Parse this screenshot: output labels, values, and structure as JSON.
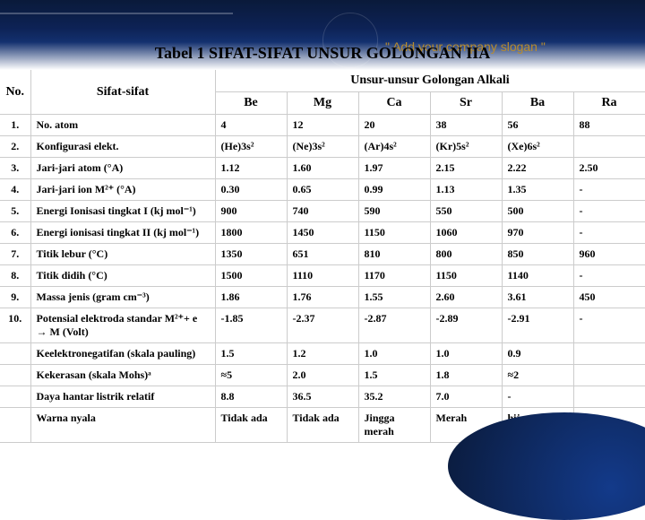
{
  "header": {
    "title": "Tabel 1 SIFAT-SIFAT UNSUR GOLONGAN IIA",
    "slogan": "\" Add your company slogan \""
  },
  "table": {
    "col_no": "No.",
    "col_sifat": "Sifat-sifat",
    "col_group": "Unsur-unsur Golongan Alkali",
    "elements": [
      "Be",
      "Mg",
      "Ca",
      "Sr",
      "Ba",
      "Ra"
    ],
    "rows": [
      {
        "no": "1.",
        "sifat": "No. atom",
        "vals": [
          "4",
          "12",
          "20",
          "38",
          "56",
          "88"
        ]
      },
      {
        "no": "2.",
        "sifat": "Konfigurasi elekt.",
        "vals": [
          "(He)3s²",
          "(Ne)3s²",
          "(Ar)4s²",
          "(Kr)5s²",
          "(Xe)6s²",
          ""
        ]
      },
      {
        "no": "3.",
        "sifat": "Jari-jari atom (°A)",
        "vals": [
          "1.12",
          "1.60",
          "1.97",
          "2.15",
          "2.22",
          "2.50"
        ]
      },
      {
        "no": "4.",
        "sifat": "Jari-jari ion M²⁺ (°A)",
        "vals": [
          "0.30",
          "0.65",
          "0.99",
          "1.13",
          "1.35",
          "-"
        ]
      },
      {
        "no": "5.",
        "sifat": "Energi Ionisasi tingkat I (kj mol⁻¹)",
        "vals": [
          "900",
          "740",
          "590",
          "550",
          "500",
          "-"
        ]
      },
      {
        "no": "6.",
        "sifat": "Energi ionisasi tingkat II (kj mol⁻¹)",
        "vals": [
          "1800",
          "1450",
          "1150",
          "1060",
          "970",
          "-"
        ]
      },
      {
        "no": "7.",
        "sifat": "Titik lebur (°C)",
        "vals": [
          "1350",
          "651",
          "810",
          "800",
          "850",
          "960"
        ]
      },
      {
        "no": "8.",
        "sifat": "Titik didih (°C)",
        "vals": [
          "1500",
          "1110",
          "1170",
          "1150",
          "1140",
          "-"
        ]
      },
      {
        "no": "9.",
        "sifat": "Massa jenis (gram cm⁻³)",
        "vals": [
          "1.86",
          "1.76",
          "1.55",
          "2.60",
          "3.61",
          "450"
        ]
      },
      {
        "no": "10.",
        "sifat": "Potensial elektroda standar M²⁺+ e → M (Volt)",
        "vals": [
          "-1.85",
          "-2.37",
          "-2.87",
          "-2.89",
          "-2.91",
          "-"
        ]
      },
      {
        "no": "",
        "sifat": "Keelektronegatifan (skala pauling)",
        "vals": [
          "1.5",
          "1.2",
          "1.0",
          "1.0",
          "0.9",
          ""
        ]
      },
      {
        "no": "",
        "sifat": "Kekerasan (skala Mohs)ᵃ",
        "vals": [
          "≈5",
          "2.0",
          "1.5",
          "1.8",
          "≈2",
          ""
        ]
      },
      {
        "no": "",
        "sifat": "Daya hantar listrik relatif",
        "vals": [
          "8.8",
          "36.5",
          "35.2",
          "7.0",
          "-",
          ""
        ]
      },
      {
        "no": "",
        "sifat": "Warna nyala",
        "vals": [
          "Tidak ada",
          "Tidak ada",
          "Jingga merah",
          "Merah",
          "hijau",
          ""
        ]
      }
    ]
  }
}
